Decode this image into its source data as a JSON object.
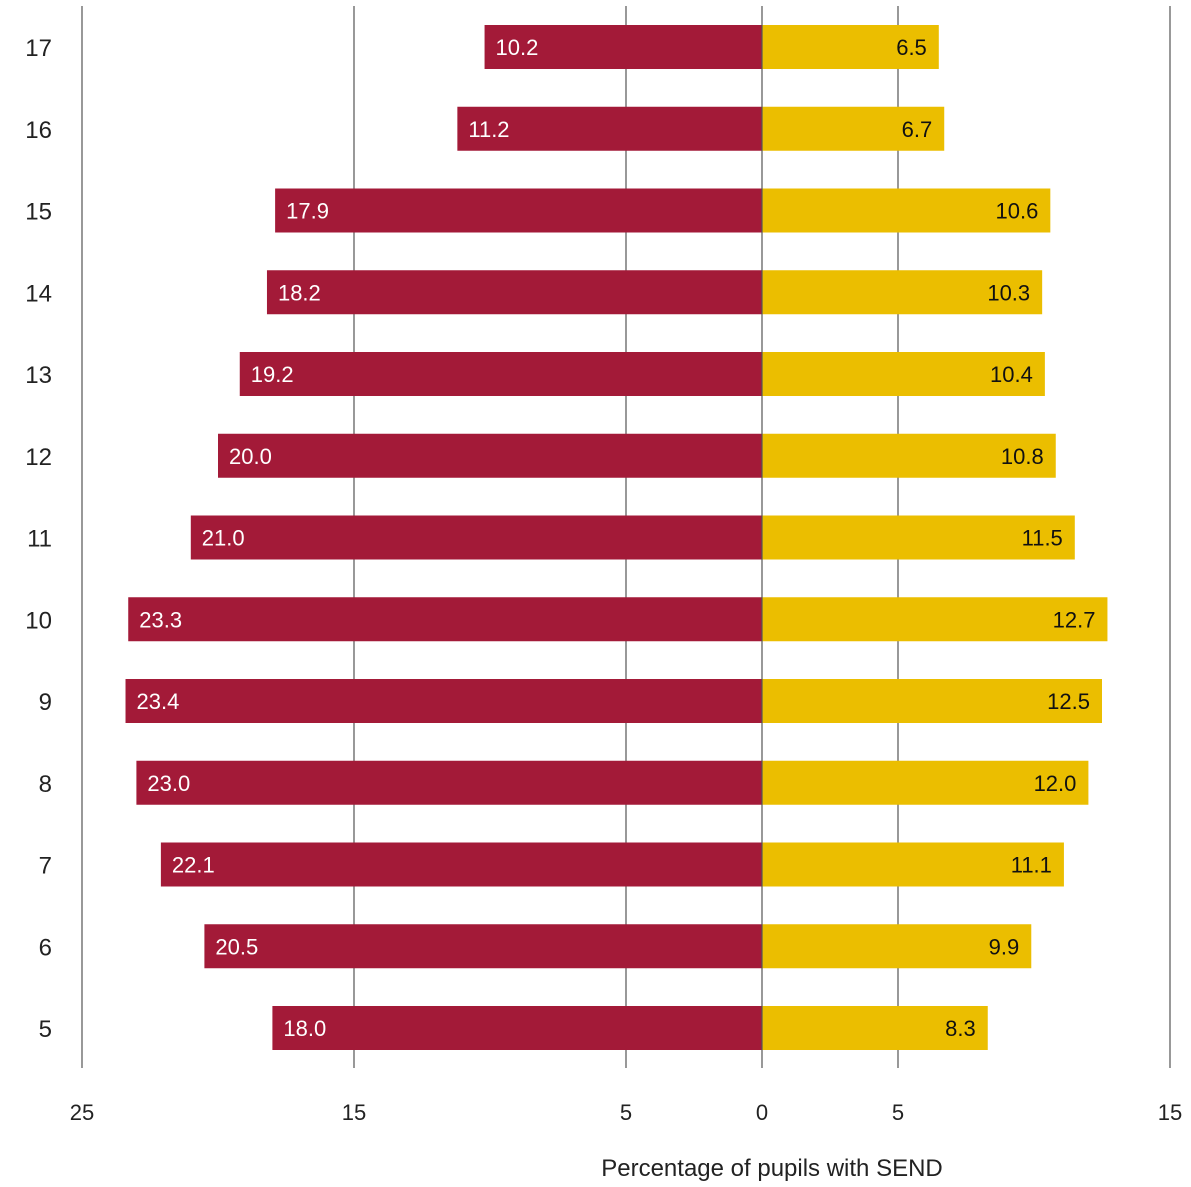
{
  "chart_data": {
    "type": "bar",
    "orientation": "horizontal-diverging",
    "title": "",
    "xlabel": "Percentage of pupils with SEND",
    "ylabel": "",
    "categories": [
      "17",
      "16",
      "15",
      "14",
      "13",
      "12",
      "11",
      "10",
      "9",
      "8",
      "7",
      "6",
      "5"
    ],
    "series": [
      {
        "side": "left",
        "color": "#A31A38",
        "label_color": "#ffffff",
        "values": [
          10.2,
          11.2,
          17.9,
          18.2,
          19.2,
          20.0,
          21.0,
          23.3,
          23.4,
          23.0,
          22.1,
          20.5,
          18.0
        ],
        "labels": [
          "10.2",
          "11.2",
          "17.9",
          "18.2",
          "19.2",
          "20.0",
          "21.0",
          "23.3",
          "23.4",
          "23.0",
          "22.1",
          "20.5",
          "18.0"
        ]
      },
      {
        "side": "right",
        "color": "#EBBE00",
        "label_color": "#111111",
        "values": [
          6.5,
          6.7,
          10.6,
          10.3,
          10.4,
          10.8,
          11.5,
          12.7,
          12.5,
          12.0,
          11.1,
          9.9,
          8.3
        ],
        "labels": [
          "6.5",
          "6.7",
          "10.6",
          "10.3",
          "10.4",
          "10.8",
          "11.5",
          "12.7",
          "12.5",
          "12.0",
          "11.1",
          "9.9",
          "8.3"
        ]
      }
    ],
    "xlim": [
      -25,
      15
    ],
    "ticks": [
      {
        "value": -25,
        "label": "25"
      },
      {
        "value": -15,
        "label": "15"
      },
      {
        "value": -5,
        "label": "5"
      },
      {
        "value": 0,
        "label": "0"
      },
      {
        "value": 5,
        "label": "5"
      },
      {
        "value": 15,
        "label": "15"
      }
    ],
    "gridlines": [
      -25,
      -15,
      -5,
      5,
      15
    ],
    "grid": true,
    "legend": "none"
  }
}
